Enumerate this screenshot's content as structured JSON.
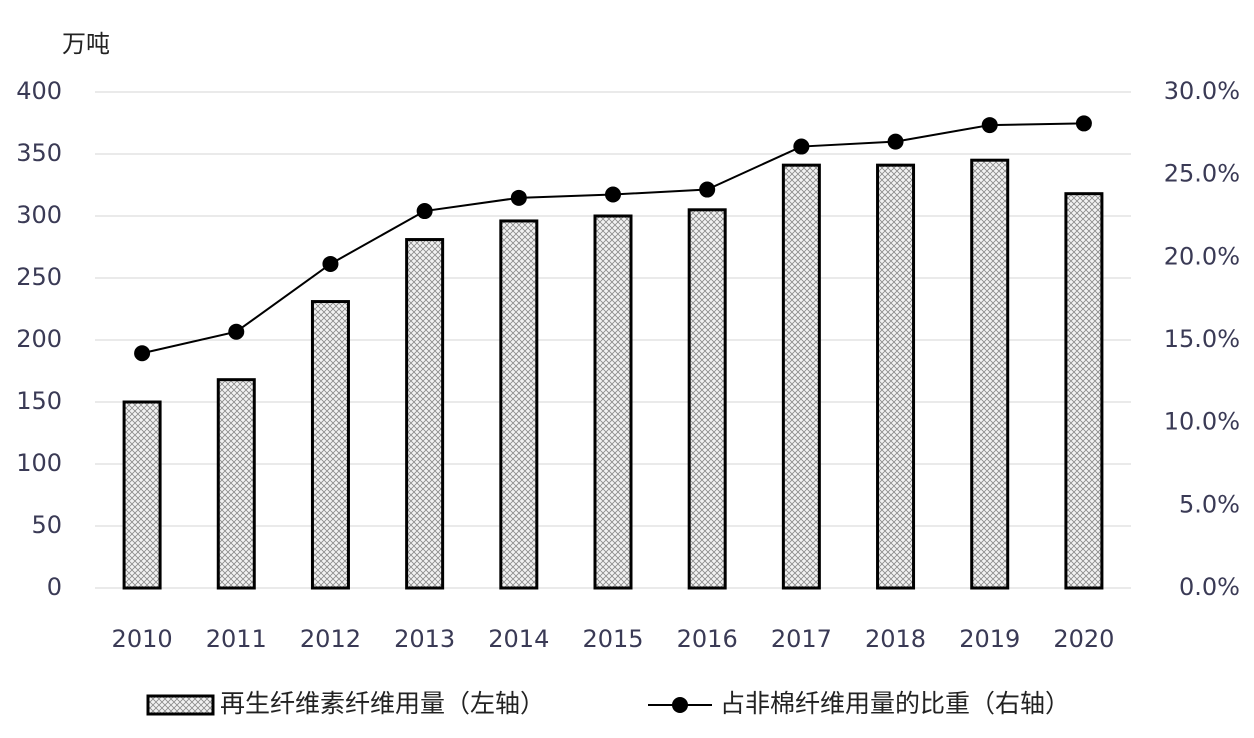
{
  "chart_data": {
    "type": "bar-line",
    "unit_label": "万吨",
    "categories": [
      "2010",
      "2011",
      "2012",
      "2013",
      "2014",
      "2015",
      "2016",
      "2017",
      "2018",
      "2019",
      "2020"
    ],
    "series": [
      {
        "name": "再生纤维素纤维用量（左轴）",
        "type": "bar",
        "color": "#000000",
        "values": [
          150,
          168,
          231,
          281,
          296,
          300,
          305,
          341,
          341,
          345,
          318
        ]
      },
      {
        "name": "占非棉纤维用量的比重（右轴）",
        "type": "line",
        "axis": "y2",
        "color": "#000000",
        "values": [
          14.2,
          15.5,
          19.6,
          22.8,
          23.6,
          23.8,
          24.1,
          26.7,
          27.0,
          28.0,
          28.1
        ]
      }
    ],
    "ylim": [
      0,
      400
    ],
    "yticks": [
      0,
      50,
      100,
      150,
      200,
      250,
      300,
      350,
      400
    ],
    "y2lim": [
      0,
      30
    ],
    "y2ticks": [
      {
        "value": 0,
        "label": "0.0%"
      },
      {
        "value": 5,
        "label": "5.0%"
      },
      {
        "value": 10,
        "label": "10.0%"
      },
      {
        "value": 15,
        "label": "15.0%"
      },
      {
        "value": 20,
        "label": "20.0%"
      },
      {
        "value": 25,
        "label": "25.0%"
      },
      {
        "value": 30,
        "label": "30.0%"
      }
    ],
    "grid": true,
    "legend": "bottom"
  }
}
